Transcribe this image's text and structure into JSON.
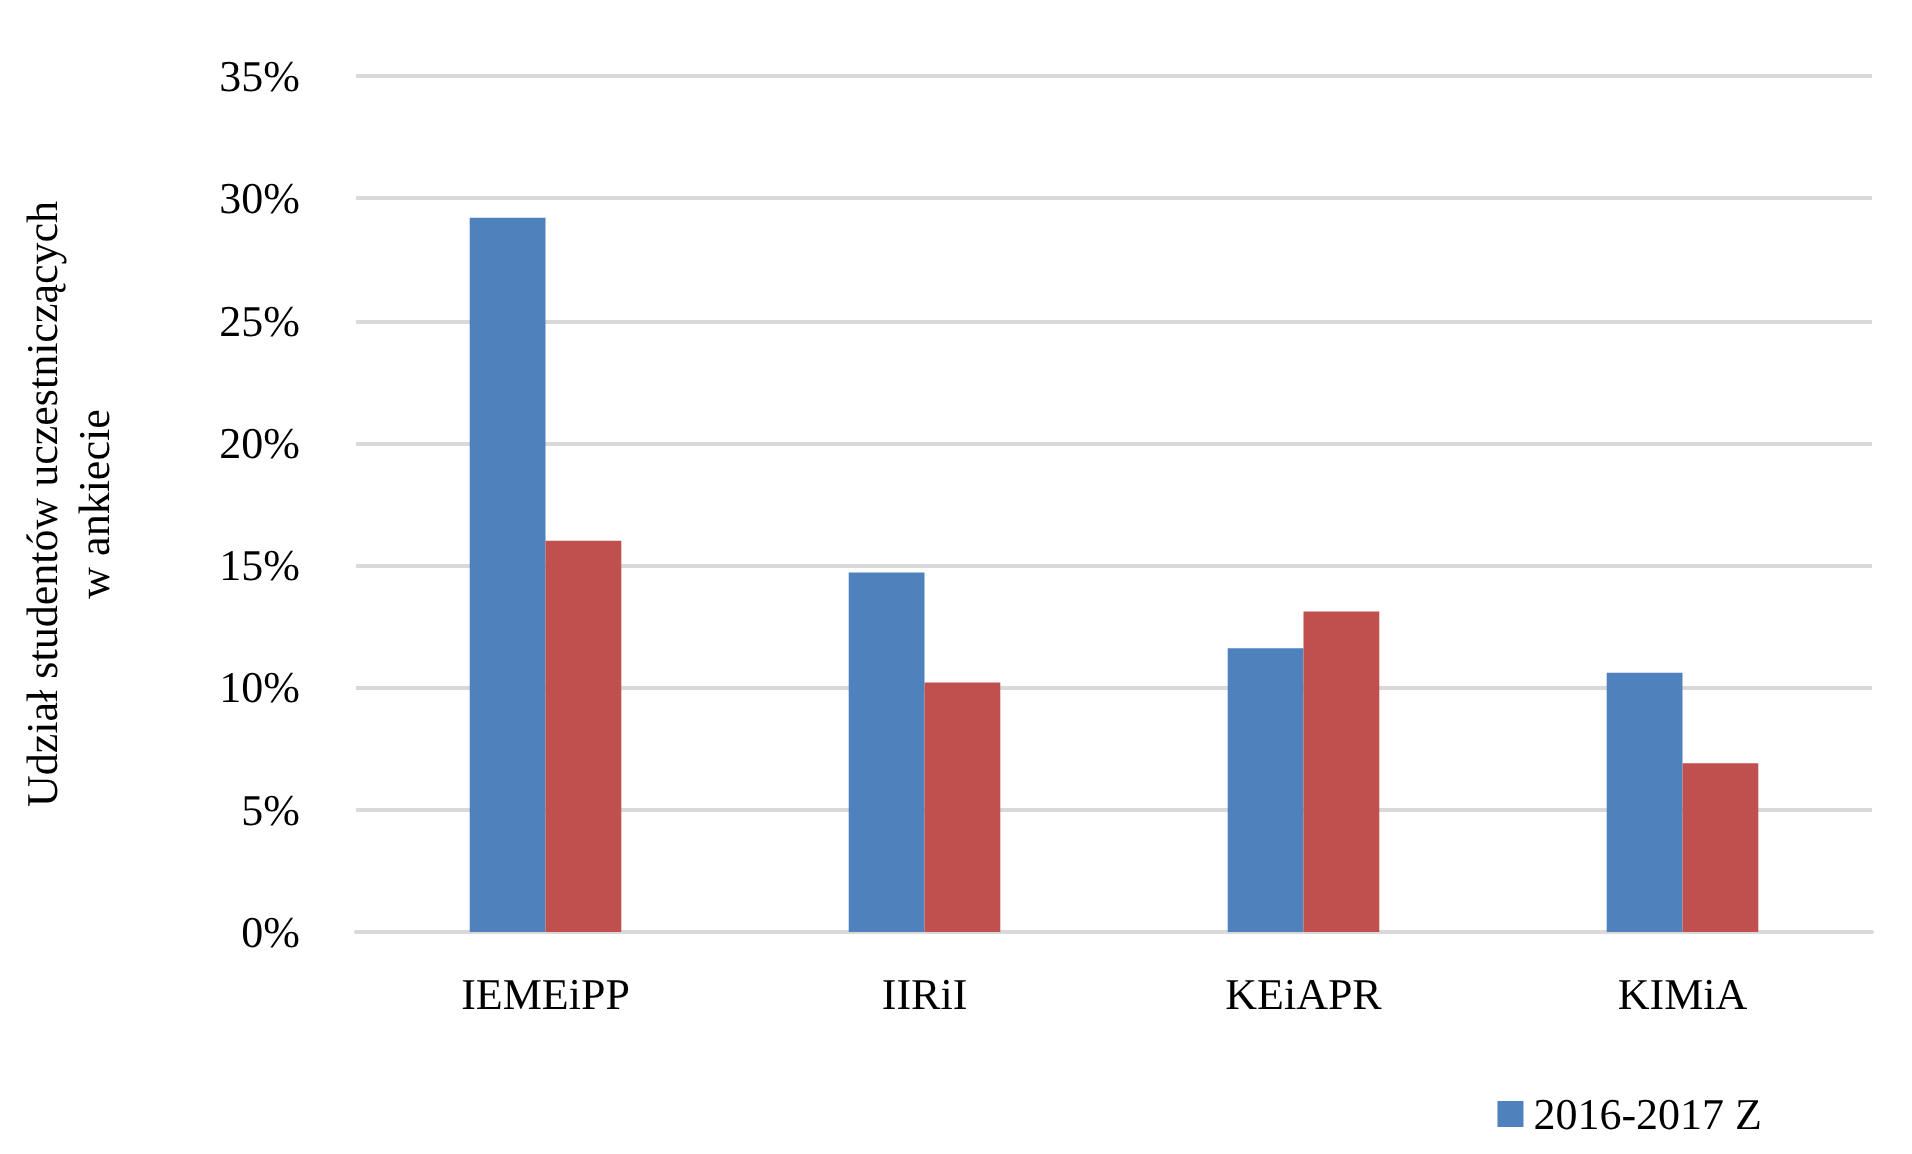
{
  "chart_data": {
    "type": "bar",
    "ylabel": "Udział studentów uczestniczących\nw ankiecie",
    "categories": [
      "IEMEiPP",
      "IIRiI",
      "KEiAPR",
      "KIMiA"
    ],
    "series": [
      {
        "name": "2016-2017 Z",
        "color": "#4f81bd",
        "values": [
          29.2,
          14.7,
          11.6,
          10.6
        ]
      },
      {
        "color": "#c0504d",
        "values": [
          16.0,
          10.2,
          13.1,
          6.9
        ]
      }
    ],
    "ylim": [
      0,
      35
    ],
    "yticks": [
      {
        "value": 0,
        "label": "0%"
      },
      {
        "value": 5,
        "label": "5%"
      },
      {
        "value": 10,
        "label": "10%"
      },
      {
        "value": 15,
        "label": "15%"
      },
      {
        "value": 20,
        "label": "20%"
      },
      {
        "value": 25,
        "label": "25%"
      },
      {
        "value": 30,
        "label": "30%"
      },
      {
        "value": 35,
        "label": "35%"
      }
    ],
    "grid": "y",
    "legend": "bottom right"
  }
}
